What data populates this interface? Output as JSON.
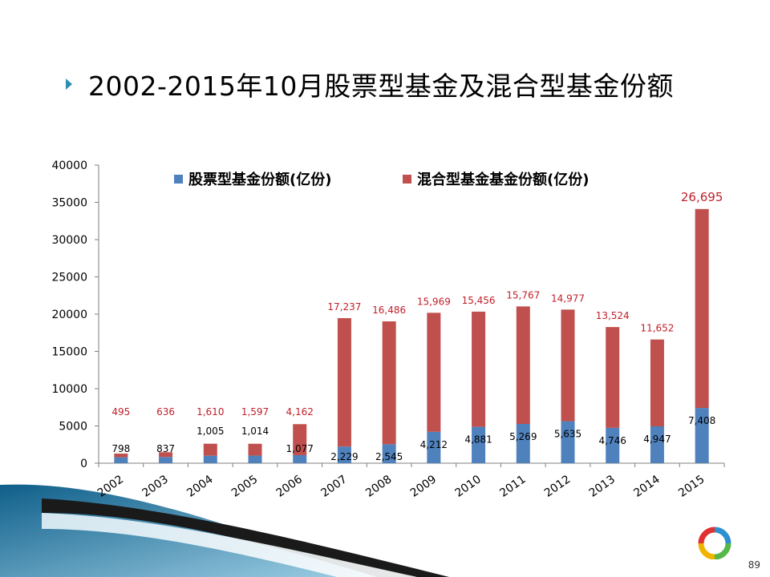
{
  "slide": {
    "title": "2002-2015年10月股票型基金及混合型基金份额",
    "page_number": "89"
  },
  "colors": {
    "stock": "#4f81bd",
    "mixed": "#c0504d",
    "stock_label": "#000000",
    "mixed_label": "#c0202a",
    "bullet": "#2e8fb0"
  },
  "chart_data": {
    "type": "bar",
    "stacked": true,
    "categories": [
      "2002",
      "2003",
      "2004",
      "2005",
      "2006",
      "2007",
      "2008",
      "2009",
      "2010",
      "2011",
      "2012",
      "2013",
      "2014",
      "2015"
    ],
    "series": [
      {
        "name": "股票型基金份额(亿份)",
        "values": [
          798,
          837,
          1005,
          1014,
          1077,
          2229,
          2545,
          4212,
          4881,
          5269,
          5635,
          4746,
          4947,
          7408
        ],
        "labels": [
          "798",
          "837",
          "1,005",
          "1,014",
          "1,077",
          "2,229",
          "2,545",
          "4,212",
          "4,881",
          "5,269",
          "5,635",
          "4,746",
          "4,947",
          "7,408"
        ]
      },
      {
        "name": "混合型基金基金份额(亿份)",
        "values": [
          495,
          636,
          1610,
          1597,
          4162,
          17237,
          16486,
          15969,
          15456,
          15767,
          14977,
          13524,
          11652,
          26695
        ],
        "labels": [
          "495",
          "636",
          "1,610",
          "1,597",
          "4,162",
          "17,237",
          "16,486",
          "15,969",
          "15,456",
          "15,767",
          "14,977",
          "13,524",
          "11,652",
          "26,695"
        ]
      }
    ],
    "yticks": [
      "0",
      "5000",
      "10000",
      "15000",
      "20000",
      "25000",
      "30000",
      "35000",
      "40000"
    ],
    "ylim": [
      0,
      40000
    ],
    "legend_position": "top",
    "grid": false
  }
}
